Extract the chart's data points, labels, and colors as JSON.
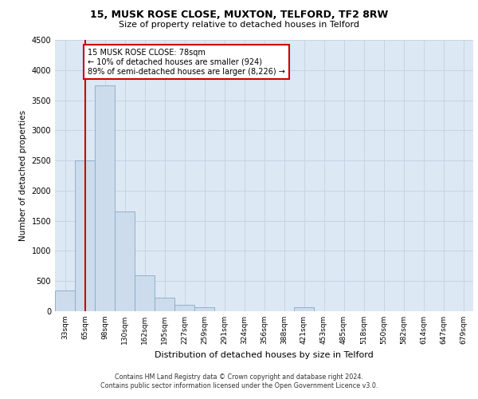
{
  "title1": "15, MUSK ROSE CLOSE, MUXTON, TELFORD, TF2 8RW",
  "title2": "Size of property relative to detached houses in Telford",
  "xlabel": "Distribution of detached houses by size in Telford",
  "ylabel": "Number of detached properties",
  "categories": [
    "33sqm",
    "65sqm",
    "98sqm",
    "130sqm",
    "162sqm",
    "195sqm",
    "227sqm",
    "259sqm",
    "291sqm",
    "324sqm",
    "356sqm",
    "388sqm",
    "421sqm",
    "453sqm",
    "485sqm",
    "518sqm",
    "550sqm",
    "582sqm",
    "614sqm",
    "647sqm",
    "679sqm"
  ],
  "values": [
    350,
    2500,
    3750,
    1650,
    600,
    220,
    105,
    60,
    5,
    5,
    5,
    5,
    60,
    5,
    5,
    5,
    5,
    5,
    5,
    5,
    5
  ],
  "bar_color": "#ccdcec",
  "bar_edge_color": "#88aac8",
  "grid_color": "#c8d4e4",
  "bg_color": "#dce8f4",
  "red_line_x": 1.0,
  "annotation_text": "15 MUSK ROSE CLOSE: 78sqm\n← 10% of detached houses are smaller (924)\n89% of semi-detached houses are larger (8,226) →",
  "annotation_box_color": "#ffffff",
  "annotation_box_edge": "#cc0000",
  "footnote1": "Contains HM Land Registry data © Crown copyright and database right 2024.",
  "footnote2": "Contains public sector information licensed under the Open Government Licence v3.0.",
  "ylim": [
    0,
    4500
  ],
  "yticks": [
    0,
    500,
    1000,
    1500,
    2000,
    2500,
    3000,
    3500,
    4000,
    4500
  ]
}
